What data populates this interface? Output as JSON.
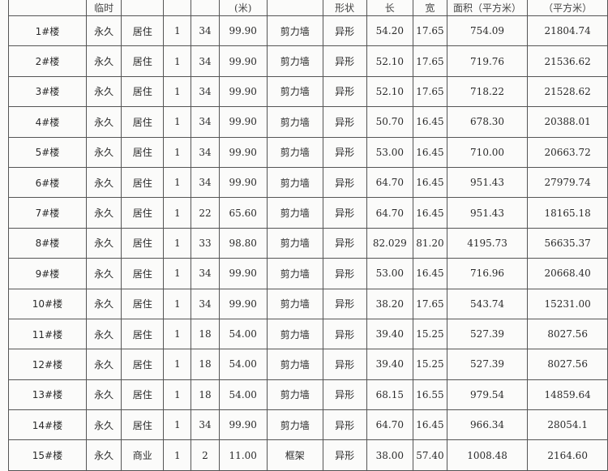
{
  "headers": [
    "",
    "临时",
    "",
    "",
    "",
    "(米)",
    "",
    "形状",
    "长",
    "宽",
    "面积（平方米）",
    "（平方米）"
  ],
  "rows": [
    [
      "1#楼",
      "永久",
      "居住",
      "1",
      "34",
      "99.90",
      "剪力墙",
      "异形",
      "54.20",
      "17.65",
      "754.09",
      "21804.74"
    ],
    [
      "2#楼",
      "永久",
      "居住",
      "1",
      "34",
      "99.90",
      "剪力墙",
      "异形",
      "52.10",
      "17.65",
      "719.76",
      "21536.62"
    ],
    [
      "3#楼",
      "永久",
      "居住",
      "1",
      "34",
      "99.90",
      "剪力墙",
      "异形",
      "52.10",
      "17.65",
      "718.22",
      "21528.62"
    ],
    [
      "4#楼",
      "永久",
      "居住",
      "1",
      "34",
      "99.90",
      "剪力墙",
      "异形",
      "50.70",
      "16.45",
      "678.30",
      "20388.01"
    ],
    [
      "5#楼",
      "永久",
      "居住",
      "1",
      "34",
      "99.90",
      "剪力墙",
      "异形",
      "53.00",
      "16.45",
      "710.00",
      "20663.72"
    ],
    [
      "6#楼",
      "永久",
      "居住",
      "1",
      "34",
      "99.90",
      "剪力墙",
      "异形",
      "64.70",
      "16.45",
      "951.43",
      "27979.74"
    ],
    [
      "7#楼",
      "永久",
      "居住",
      "1",
      "22",
      "65.60",
      "剪力墙",
      "异形",
      "64.70",
      "16.45",
      "951.43",
      "18165.18"
    ],
    [
      "8#楼",
      "永久",
      "居住",
      "1",
      "33",
      "98.80",
      "剪力墙",
      "异形",
      "82.029",
      "81.20",
      "4195.73",
      "56635.37"
    ],
    [
      "9#楼",
      "永久",
      "居住",
      "1",
      "34",
      "99.90",
      "剪力墙",
      "异形",
      "53.00",
      "16.45",
      "716.96",
      "20668.40"
    ],
    [
      "10#楼",
      "永久",
      "居住",
      "1",
      "34",
      "99.90",
      "剪力墙",
      "异形",
      "38.20",
      "17.65",
      "543.74",
      "15231.00"
    ],
    [
      "11#楼",
      "永久",
      "居住",
      "1",
      "18",
      "54.00",
      "剪力墙",
      "异形",
      "39.40",
      "15.25",
      "527.39",
      "8027.56"
    ],
    [
      "12#楼",
      "永久",
      "居住",
      "1",
      "18",
      "54.00",
      "剪力墙",
      "异形",
      "39.40",
      "15.25",
      "527.39",
      "8027.56"
    ],
    [
      "13#楼",
      "永久",
      "居住",
      "1",
      "18",
      "54.00",
      "剪力墙",
      "异形",
      "68.15",
      "16.55",
      "979.54",
      "14859.64"
    ],
    [
      "14#楼",
      "永久",
      "居住",
      "1",
      "34",
      "99.90",
      "剪力墙",
      "异形",
      "64.70",
      "16.45",
      "966.34",
      "28054.1"
    ],
    [
      "15#楼",
      "永久",
      "商业",
      "1",
      "2",
      "11.00",
      "框架",
      "异形",
      "38.00",
      "57.40",
      "1008.48",
      "2164.60"
    ]
  ]
}
